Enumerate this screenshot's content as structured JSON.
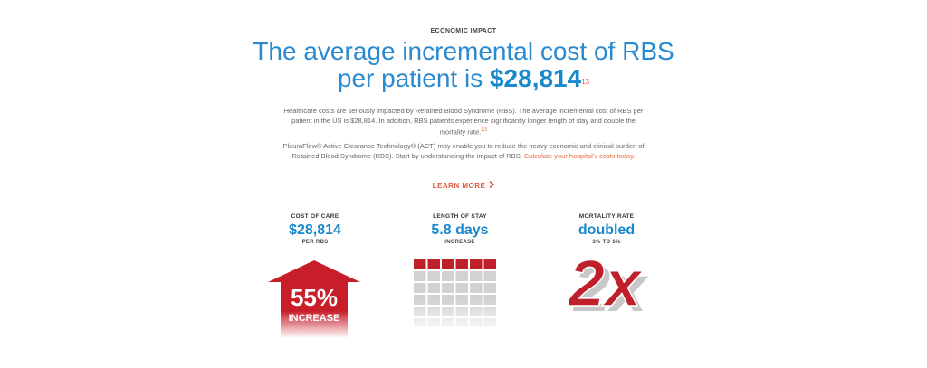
{
  "header": {
    "eyebrow": "ECONOMIC IMPACT",
    "headline_line1": "The average incremental cost of RBS",
    "headline_line2_prefix": "per patient is ",
    "headline_amount": "$28,814",
    "headline_sup": "13"
  },
  "body": {
    "para1": "Healthcare costs are seriously impacted by Retained Blood Syndrome (RBS). The average incremental cost of RBS per patient in the US is $28,814. In addition, RBS patients experience significantly longer length of stay and double the mortality rate.",
    "para1_sup": "1,5",
    "para2": "PleuraFlow® Active Clearance Technology® (ACT) may enable you to reduce the heavy economic and clinical burden of Retained Blood Syndrome (RBS). Start by understanding the impact of RBS.",
    "para2_link": "Calculate your hospital's costs today."
  },
  "cta": {
    "label": "LEARN MORE",
    "icon": "chevron-right-icon",
    "color": "#e0593b"
  },
  "stats": {
    "cost": {
      "label": "COST OF CARE",
      "value": "$28,814",
      "sub": "PER RBS",
      "graphic_percent": "55%",
      "graphic_label": "INCREASE"
    },
    "stay": {
      "label": "LENGTH OF STAY",
      "value": "5.8 days",
      "sub": "INCREASE",
      "grid_filled": 6,
      "grid_total": 36
    },
    "mortality": {
      "label": "MORTALITY RATE",
      "value": "doubled",
      "sub": "3% TO 6%",
      "graphic_text": "2x"
    }
  },
  "colors": {
    "accent_blue": "#1a88cc",
    "accent_red": "#c0202a",
    "link_orange": "#e86a45"
  }
}
